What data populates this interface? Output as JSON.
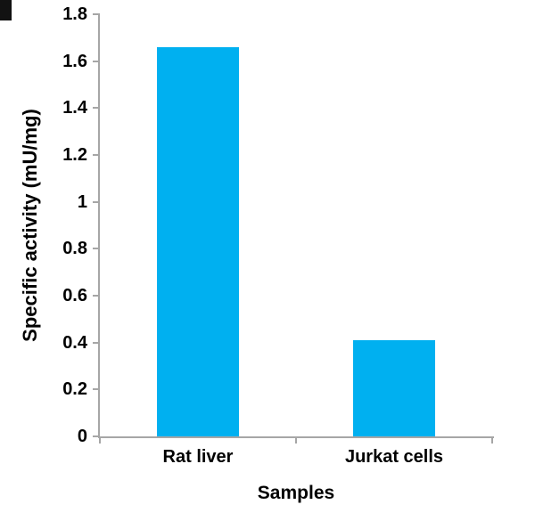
{
  "chart_data": {
    "type": "bar",
    "title": "",
    "categories": [
      "Rat liver",
      "Jurkat cells"
    ],
    "values": [
      1.66,
      0.41
    ],
    "xlabel": "Samples",
    "ylabel": "Specific activity (mU/mg)",
    "ylim": [
      0,
      1.8
    ],
    "ytick_step": 0.2,
    "yticks": [
      "0",
      "0.2",
      "0.4",
      "0.6",
      "0.8",
      "1",
      "1.2",
      "1.4",
      "1.6",
      "1.8"
    ],
    "bar_color": "#00b0f0",
    "axis_color": "#a6a6a6",
    "text_color": "#000000",
    "grid": "off",
    "legend": "none"
  }
}
